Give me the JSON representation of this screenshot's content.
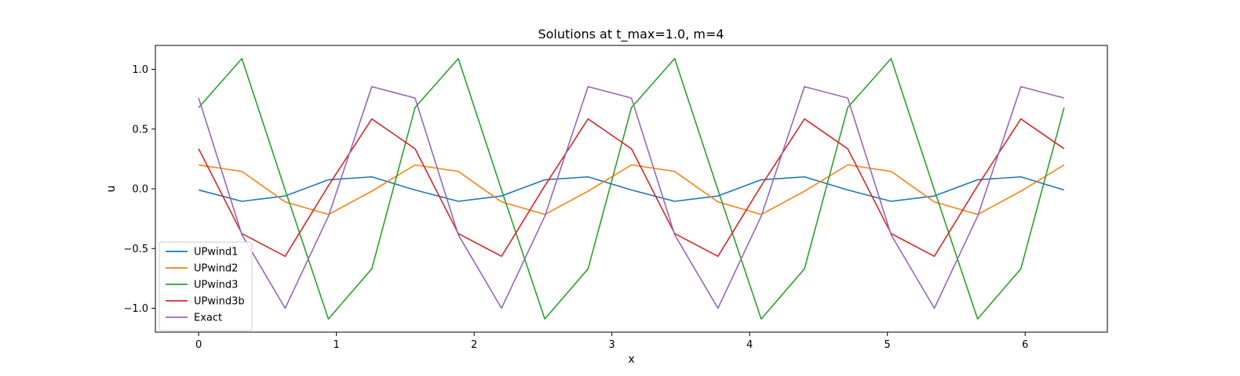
{
  "chart_data": {
    "type": "line",
    "title": "Solutions at t_max=1.0, m=4",
    "xlabel": "x",
    "ylabel": "u",
    "xlim": [
      -0.314,
      6.597
    ],
    "ylim": [
      -1.2,
      1.2
    ],
    "xticks": [
      0,
      1,
      2,
      3,
      4,
      5,
      6
    ],
    "xtick_labels": [
      "0",
      "1",
      "2",
      "3",
      "4",
      "5",
      "6"
    ],
    "yticks": [
      -1.0,
      -0.5,
      0.0,
      0.5,
      1.0
    ],
    "ytick_labels": [
      "−1.0",
      "−0.5",
      "0.0",
      "0.5",
      "1.0"
    ],
    "grid": false,
    "legend_position": "lower-left",
    "x": [
      0,
      0.314,
      0.628,
      0.942,
      1.257,
      1.571,
      1.885,
      2.199,
      2.513,
      2.827,
      3.142,
      3.456,
      3.77,
      4.084,
      4.398,
      4.712,
      5.027,
      5.341,
      5.655,
      5.969,
      6.283
    ],
    "series": [
      {
        "name": "UPwind1",
        "color": "#1f77b4",
        "values": [
          -0.01,
          -0.105,
          -0.06,
          0.075,
          0.1,
          -0.01,
          -0.105,
          -0.06,
          0.075,
          0.1,
          -0.01,
          -0.105,
          -0.06,
          0.075,
          0.1,
          -0.01,
          -0.105,
          -0.06,
          0.075,
          0.1,
          -0.01
        ]
      },
      {
        "name": "UPwind2",
        "color": "#ff7f0e",
        "values": [
          0.2,
          0.145,
          -0.11,
          -0.215,
          -0.02,
          0.2,
          0.145,
          -0.11,
          -0.215,
          -0.02,
          0.2,
          0.145,
          -0.11,
          -0.215,
          -0.02,
          0.2,
          0.145,
          -0.11,
          -0.215,
          -0.02,
          0.2
        ]
      },
      {
        "name": "UPwind3",
        "color": "#2ca02c",
        "values": [
          0.68,
          1.09,
          -0.01,
          -1.09,
          -0.67,
          0.68,
          1.09,
          -0.01,
          -1.09,
          -0.67,
          0.68,
          1.09,
          -0.01,
          -1.09,
          -0.67,
          0.68,
          1.09,
          -0.01,
          -1.09,
          -0.67,
          0.68
        ]
      },
      {
        "name": "UPwind3b",
        "color": "#d62728",
        "values": [
          0.335,
          -0.375,
          -0.565,
          0.025,
          0.585,
          0.335,
          -0.375,
          -0.565,
          0.025,
          0.585,
          0.335,
          -0.375,
          -0.565,
          0.025,
          0.585,
          0.335,
          -0.375,
          -0.565,
          0.025,
          0.585,
          0.335
        ]
      },
      {
        "name": "Exact",
        "color": "#9467bd",
        "values": [
          0.76,
          -0.385,
          -1.0,
          -0.23,
          0.855,
          0.76,
          -0.385,
          -1.0,
          -0.23,
          0.855,
          0.76,
          -0.385,
          -1.0,
          -0.23,
          0.855,
          0.76,
          -0.385,
          -1.0,
          -0.23,
          0.855,
          0.76
        ]
      }
    ]
  }
}
